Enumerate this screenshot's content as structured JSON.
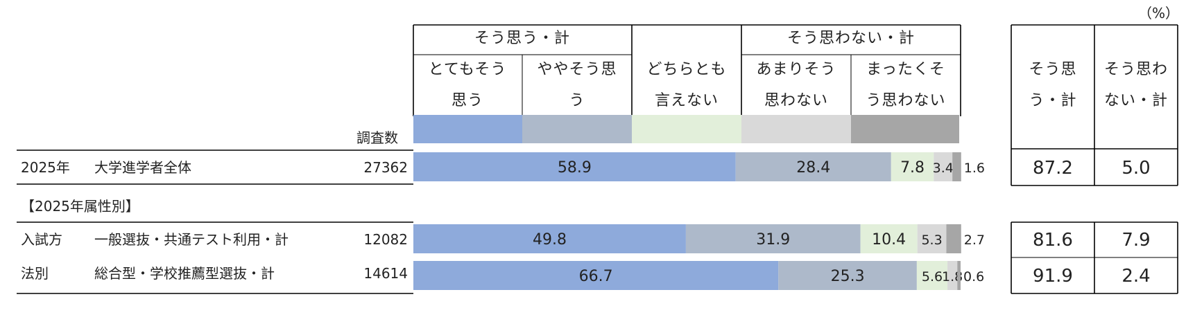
{
  "unit": "（%）",
  "header": {
    "group_agree": "そう思う・計",
    "group_disagree": "そう思わない・計",
    "cols": [
      [
        "とてもそう",
        "思う"
      ],
      [
        "ややそう思",
        "う"
      ],
      [
        "どちらとも",
        "言えない"
      ],
      [
        "あまりそう",
        "思わない"
      ],
      [
        "まったくそ",
        "う思わない"
      ]
    ],
    "count_label": "調査数",
    "total_agree": [
      "そう思",
      "う・計"
    ],
    "total_disagree": [
      "そう思わ",
      "ない・計"
    ]
  },
  "section_label": "【2025年属性別】",
  "group_label": [
    "入試方",
    "法別"
  ],
  "colors": [
    "#8eaadb",
    "#adb9ca",
    "#e2efda",
    "#d9d9d9",
    "#a6a6a6"
  ],
  "chart_data": {
    "type": "bar",
    "orientation": "horizontal",
    "stacked": true,
    "unit": "%",
    "series": [
      {
        "name": "とてもそう思う",
        "values": [
          58.9,
          49.8,
          66.7
        ]
      },
      {
        "name": "ややそう思う",
        "values": [
          28.4,
          31.9,
          25.3
        ]
      },
      {
        "name": "どちらとも言えない",
        "values": [
          7.8,
          10.4,
          5.6
        ]
      },
      {
        "name": "あまりそう思わない",
        "values": [
          3.4,
          5.3,
          1.8
        ]
      },
      {
        "name": "まったくそう思わない",
        "values": [
          1.6,
          2.7,
          0.6
        ]
      }
    ],
    "rows": [
      {
        "year": "2025年",
        "label": "大学進学者全体",
        "n": "27362",
        "agree_total": "87.2",
        "disagree_total": "5.0"
      },
      {
        "year": "",
        "label": "一般選抜・共通テスト利用・計",
        "n": "12082",
        "agree_total": "81.6",
        "disagree_total": "7.9"
      },
      {
        "year": "",
        "label": "総合型・学校推薦型選抜・計",
        "n": "14614",
        "agree_total": "91.9",
        "disagree_total": "2.4"
      }
    ]
  }
}
